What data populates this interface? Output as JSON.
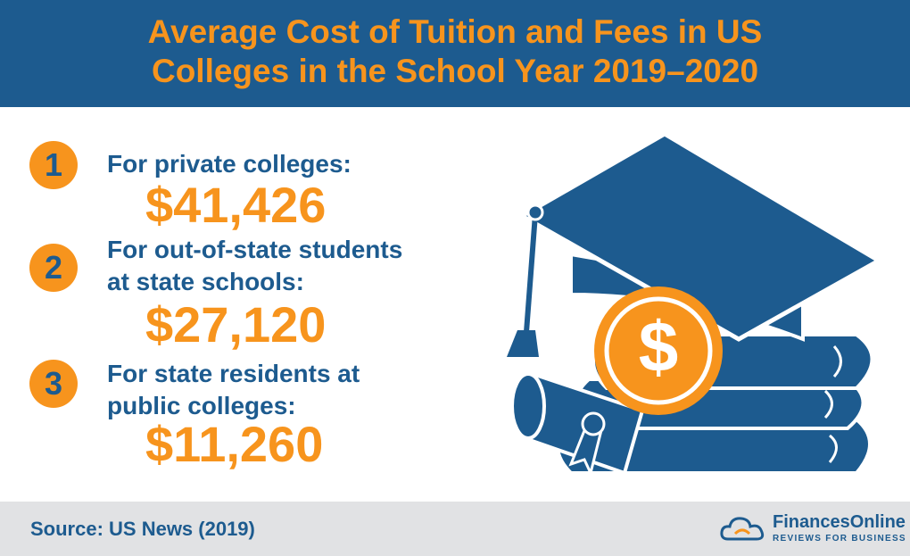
{
  "header": {
    "title_lines": [
      "Average Cost of Tuition and Fees in US",
      "Colleges in the School Year 2019–2020"
    ]
  },
  "items": [
    {
      "number": "1",
      "label_lines": [
        "For private colleges:"
      ],
      "value": "$41,426"
    },
    {
      "number": "2",
      "label_lines": [
        "For out-of-state students",
        "at state schools:"
      ],
      "value": "$27,120"
    },
    {
      "number": "3",
      "label_lines": [
        "For state residents at",
        "public colleges:"
      ],
      "value": "$11,260"
    }
  ],
  "illustration": {
    "coin_symbol": "$"
  },
  "footer": {
    "source": "Source: US News (2019)",
    "brand": "FinancesOnline",
    "tagline": "REVIEWS FOR BUSINESS"
  }
}
